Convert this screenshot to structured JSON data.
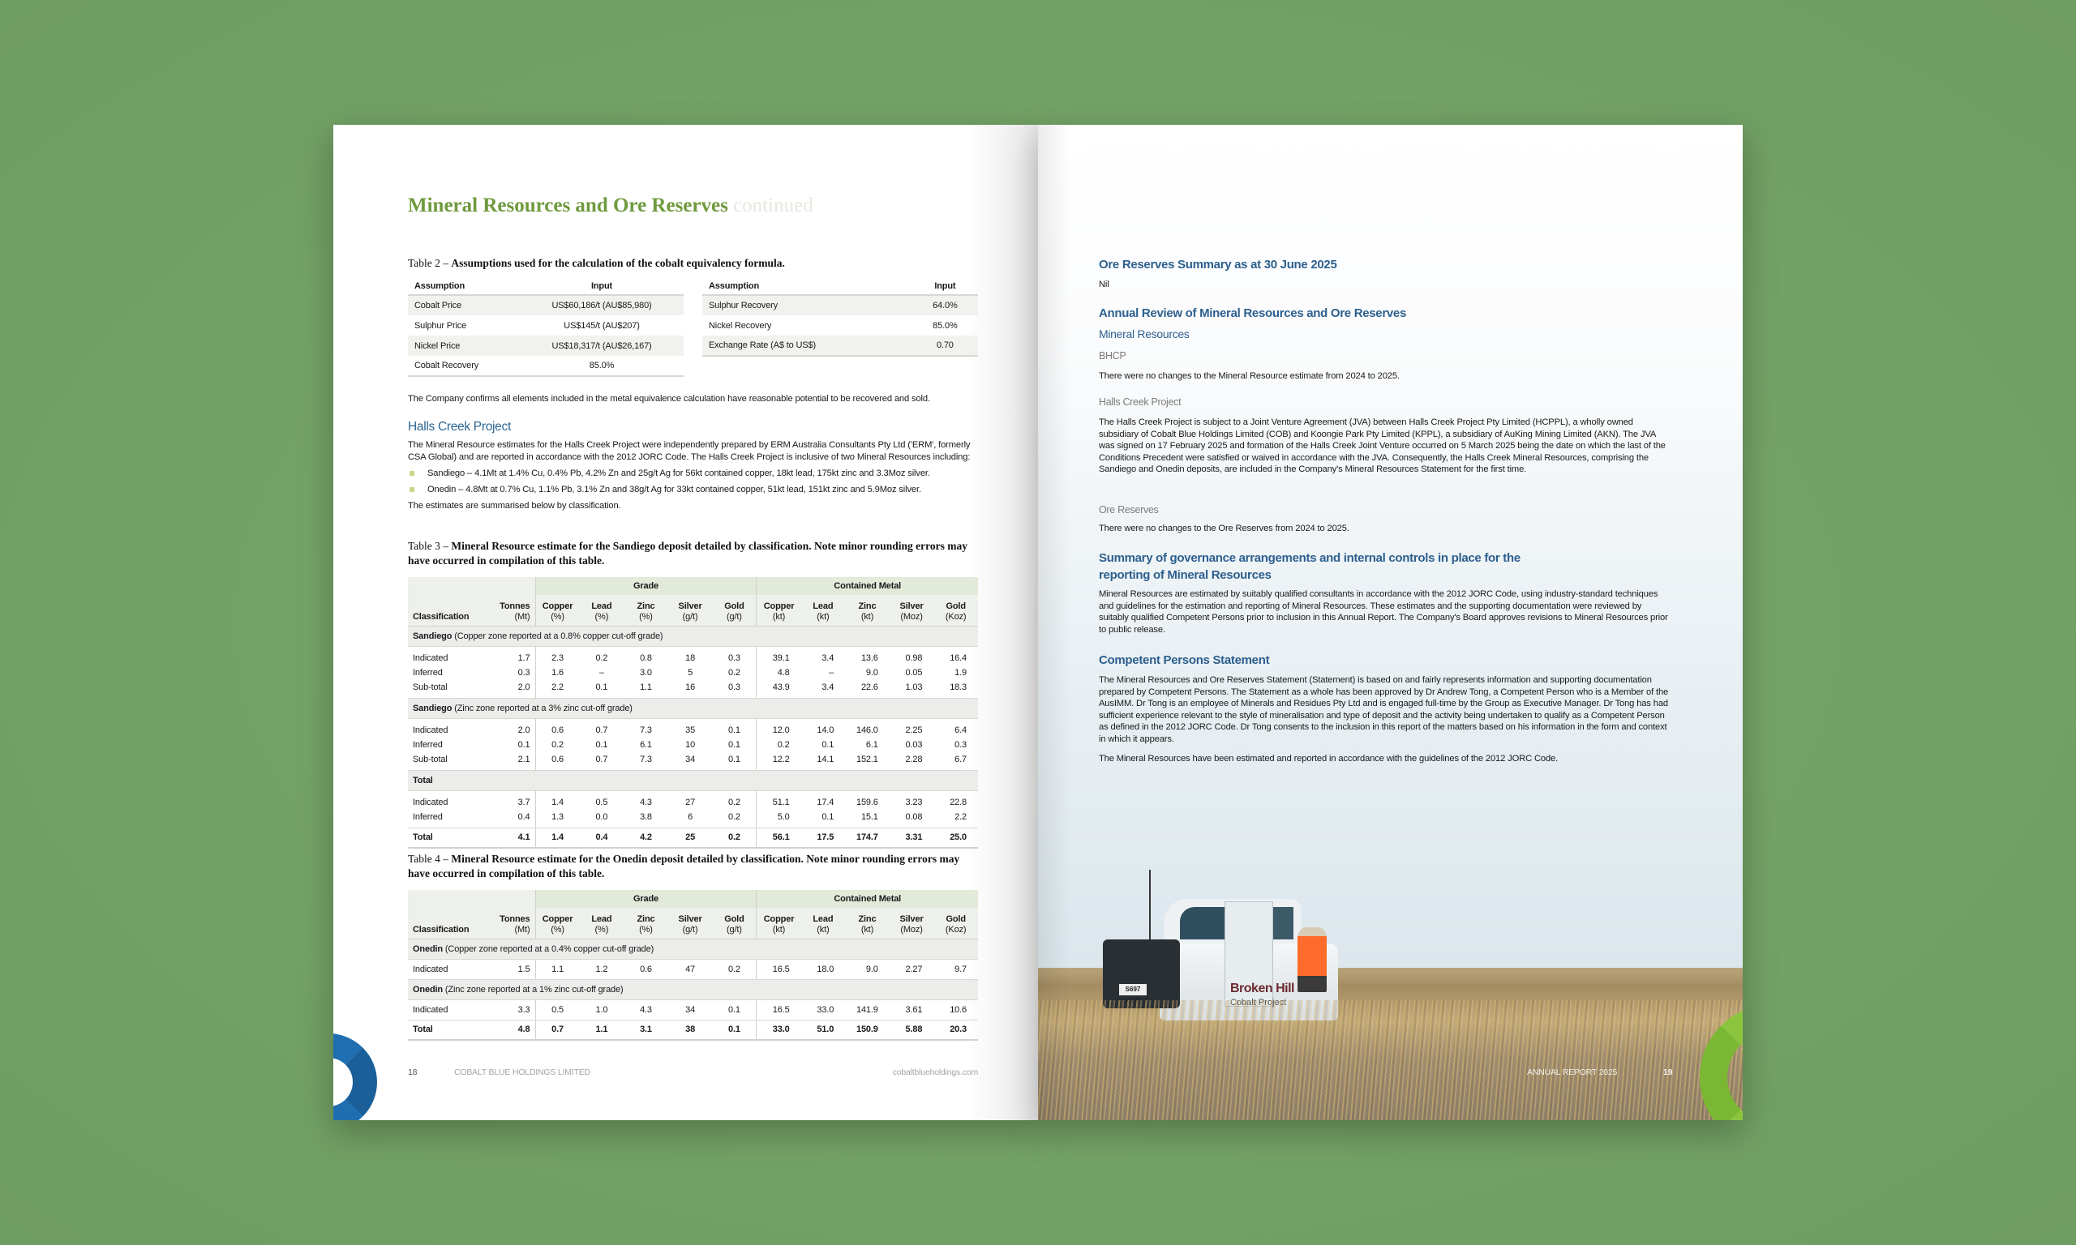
{
  "colors": {
    "background": "#76a468",
    "title_green": "#6f9a3e",
    "heading_blue": "#2c5f8e",
    "table_green": "#e2eada",
    "accent_blue": "#1f6fb0",
    "accent_green": "#8cc43e"
  },
  "left_page": {
    "title": "Mineral Resources and Ore Reserves",
    "title_suffix": "continued",
    "table2": {
      "caption_prefix": "Table 2 – ",
      "caption": "Assumptions used for the calculation of the cobalt equivalency formula.",
      "headers": [
        "Assumption",
        "Input"
      ],
      "left_rows": [
        [
          "Cobalt Price",
          "US$60,186/t (AU$85,980)"
        ],
        [
          "Sulphur Price",
          "US$145/t (AU$207)"
        ],
        [
          "Nickel Price",
          "US$18,317/t (AU$26,167)"
        ],
        [
          "Cobalt Recovery",
          "85.0%"
        ]
      ],
      "right_rows": [
        [
          "Sulphur Recovery",
          "64.0%"
        ],
        [
          "Nickel Recovery",
          "85.0%"
        ],
        [
          "Exchange Rate (A$ to US$)",
          "0.70"
        ]
      ]
    },
    "confirm_text": "The Company confirms all elements included in the metal equivalence calculation have reasonable potential to be recovered and sold.",
    "halls_creek": {
      "heading": "Halls Creek Project",
      "paragraph": "The Mineral Resource estimates for the Halls Creek Project were independently prepared by ERM Australia Consultants Pty Ltd ('ERM', formerly CSA Global) and are reported in accordance with the 2012 JORC Code. The Halls Creek Project is inclusive of two Mineral Resources including:",
      "bullets": [
        "Sandiego – 4.1Mt at 1.4% Cu, 0.4% Pb, 4.2% Zn and 25g/t Ag for 56kt contained copper, 18kt lead, 175kt zinc and 3.3Moz silver.",
        "Onedin – 4.8Mt at 0.7% Cu, 1.1% Pb, 3.1% Zn and 38g/t Ag for 33kt contained copper, 51kt lead, 151kt zinc and 5.9Moz silver."
      ],
      "summary": "The estimates are summarised below by classification."
    },
    "resource_columns": {
      "group_grade": "Grade",
      "group_metal": "Contained Metal",
      "classification": "Classification",
      "cols": [
        {
          "name": "Tonnes",
          "unit": "(Mt)"
        },
        {
          "name": "Copper",
          "unit": "(%)"
        },
        {
          "name": "Lead",
          "unit": "(%)"
        },
        {
          "name": "Zinc",
          "unit": "(%)"
        },
        {
          "name": "Silver",
          "unit": "(g/t)"
        },
        {
          "name": "Gold",
          "unit": "(g/t)"
        },
        {
          "name": "Copper",
          "unit": "(kt)"
        },
        {
          "name": "Lead",
          "unit": "(kt)"
        },
        {
          "name": "Zinc",
          "unit": "(kt)"
        },
        {
          "name": "Silver",
          "unit": "(Moz)"
        },
        {
          "name": "Gold",
          "unit": "(Koz)"
        }
      ]
    },
    "table3": {
      "caption_prefix": "Table 3 – ",
      "caption": "Mineral Resource estimate for the Sandiego deposit detailed by classification. Note minor rounding errors may have occurred in compilation of this table.",
      "sections": [
        {
          "name": "Sandiego",
          "note": " (Copper zone reported at a 0.8% copper cut-off grade)",
          "rows": [
            {
              "label": "Indicated",
              "values": [
                "1.7",
                "2.3",
                "0.2",
                "0.8",
                "18",
                "0.3",
                "39.1",
                "3.4",
                "13.6",
                "0.98",
                "16.4"
              ]
            },
            {
              "label": "Inferred",
              "values": [
                "0.3",
                "1.6",
                "–",
                "3.0",
                "5",
                "0.2",
                "4.8",
                "–",
                "9.0",
                "0.05",
                "1.9"
              ]
            },
            {
              "label": "Sub-total",
              "values": [
                "2.0",
                "2.2",
                "0.1",
                "1.1",
                "16",
                "0.3",
                "43.9",
                "3.4",
                "22.6",
                "1.03",
                "18.3"
              ]
            }
          ]
        },
        {
          "name": "Sandiego",
          "note": " (Zinc zone reported at a 3% zinc cut-off grade)",
          "rows": [
            {
              "label": "Indicated",
              "values": [
                "2.0",
                "0.6",
                "0.7",
                "7.3",
                "35",
                "0.1",
                "12.0",
                "14.0",
                "146.0",
                "2.25",
                "6.4"
              ]
            },
            {
              "label": "Inferred",
              "values": [
                "0.1",
                "0.2",
                "0.1",
                "6.1",
                "10",
                "0.1",
                "0.2",
                "0.1",
                "6.1",
                "0.03",
                "0.3"
              ]
            },
            {
              "label": "Sub-total",
              "values": [
                "2.1",
                "0.6",
                "0.7",
                "7.3",
                "34",
                "0.1",
                "12.2",
                "14.1",
                "152.1",
                "2.28",
                "6.7"
              ]
            }
          ]
        },
        {
          "name": "Total",
          "note": "",
          "rows": [
            {
              "label": "Indicated",
              "values": [
                "3.7",
                "1.4",
                "0.5",
                "4.3",
                "27",
                "0.2",
                "51.1",
                "17.4",
                "159.6",
                "3.23",
                "22.8"
              ]
            },
            {
              "label": "Inferred",
              "values": [
                "0.4",
                "1.3",
                "0.0",
                "3.8",
                "6",
                "0.2",
                "5.0",
                "0.1",
                "15.1",
                "0.08",
                "2.2"
              ]
            }
          ]
        }
      ],
      "total": {
        "label": "Total",
        "values": [
          "4.1",
          "1.4",
          "0.4",
          "4.2",
          "25",
          "0.2",
          "56.1",
          "17.5",
          "174.7",
          "3.31",
          "25.0"
        ]
      }
    },
    "table4": {
      "caption_prefix": "Table 4 – ",
      "caption": "Mineral Resource estimate for the Onedin deposit detailed by classification. Note minor rounding errors may have occurred in compilation of this table.",
      "sections": [
        {
          "name": "Onedin",
          "note": " (Copper zone reported at a 0.4% copper cut-off grade)",
          "rows": [
            {
              "label": "Indicated",
              "values": [
                "1.5",
                "1.1",
                "1.2",
                "0.6",
                "47",
                "0.2",
                "16.5",
                "18.0",
                "9.0",
                "2.27",
                "9.7"
              ]
            }
          ]
        },
        {
          "name": "Onedin",
          "note": " (Zinc zone reported at a 1% zinc cut-off grade)",
          "rows": [
            {
              "label": "Indicated",
              "values": [
                "3.3",
                "0.5",
                "1.0",
                "4.3",
                "34",
                "0.1",
                "16.5",
                "33.0",
                "141.9",
                "3.61",
                "10.6"
              ]
            }
          ]
        }
      ],
      "total": {
        "label": "Total",
        "values": [
          "4.8",
          "0.7",
          "1.1",
          "3.1",
          "38",
          "0.1",
          "33.0",
          "51.0",
          "150.9",
          "5.88",
          "20.3"
        ]
      }
    },
    "footer": {
      "page_number": "18",
      "company": "COBALT BLUE HOLDINGS LIMITED",
      "website": "cobaltblueholdings.com"
    }
  },
  "right_page": {
    "ore_summary_heading": "Ore Reserves Summary as at 30 June 2025",
    "ore_summary_value": "Nil",
    "annual_review_heading": "Annual Review of Mineral Resources and Ore Reserves",
    "mineral_resources_heading": "Mineral Resources",
    "bhcp_label": "BHCP",
    "bhcp_text": "There were no changes to the Mineral Resource estimate from 2024 to 2025.",
    "halls_label": "Halls Creek Project",
    "halls_text": "The Halls Creek Project is subject to a Joint Venture Agreement (JVA) between Halls Creek Project Pty Limited (HCPPL), a wholly owned subsidiary of Cobalt Blue Holdings Limited (COB) and Koongie Park Pty Limited (KPPL), a subsidiary of AuKing Mining Limited (AKN). The JVA was signed on 17 February 2025 and formation of the Halls Creek Joint Venture occurred on 5 March 2025 being the date on which the last of the Conditions Precedent were satisfied or waived in accordance with the JVA. Consequently, the Halls Creek Mineral Resources, comprising the Sandiego and Onedin deposits, are included in the Company's Mineral Resources Statement for the first time.",
    "ore_label": "Ore Reserves",
    "ore_text": "There were no changes to the Ore Reserves from 2024 to 2025.",
    "governance_heading": "Summary of governance arrangements and internal controls in place for the reporting of Mineral Resources",
    "governance_text": "Mineral Resources are estimated by suitably qualified consultants in accordance with the 2012 JORC Code, using industry-standard techniques and guidelines for the estimation and reporting of Mineral Resources. These estimates and the supporting documentation were reviewed by suitably qualified Competent Persons prior to inclusion in this Annual Report. The Company's Board approves revisions to Mineral Resources prior to public release.",
    "competent_heading": "Competent Persons Statement",
    "competent_text": "The Mineral Resources and Ore Reserves Statement (Statement) is based on and fairly represents information and supporting documentation prepared by Competent Persons. The Statement as a whole has been approved by Dr Andrew Tong, a Competent Person who is a Member of the AusIMM. Dr Tong is an employee of Minerals and Residues Pty Ltd and is engaged full-time by the Group as Executive Manager. Dr Tong has had sufficient experience relevant to the style of mineralisation and type of deposit and the activity being undertaken to qualify as a Competent Person as defined in the 2012 JORC Code. Dr Tong consents to the inclusion in this report of the matters based on his information in the form and context in which it appears.",
    "final_text": "The Mineral Resources have been estimated and reported in accordance with the guidelines of the 2012 JORC Code.",
    "photo": {
      "vehicle_brand": "Broken Hill",
      "vehicle_sub": "Cobalt Project",
      "plate": "S697 CHD"
    },
    "footer": {
      "report": "ANNUAL REPORT 2025",
      "page_number": "19"
    }
  }
}
